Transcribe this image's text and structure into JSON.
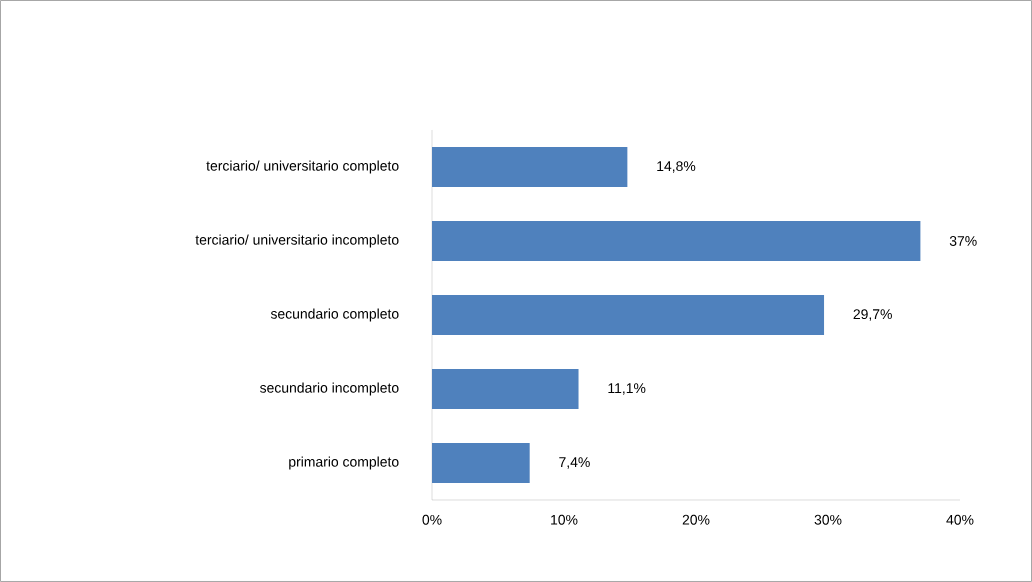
{
  "chart_data": {
    "type": "bar",
    "orientation": "horizontal",
    "categories": [
      "terciario/ universitario completo",
      "terciario/ universitario incompleto",
      "secundario completo",
      "secundario incompleto",
      "primario completo"
    ],
    "values": [
      14.8,
      37,
      29.7,
      11.1,
      7.4
    ],
    "value_labels": [
      "14,8%",
      "37%",
      "29,7%",
      "11,1%",
      "7,4%"
    ],
    "color": "#4f81bd",
    "xlim": [
      0,
      40
    ],
    "xticks": [
      {
        "value": 0,
        "label": "0%"
      },
      {
        "value": 10,
        "label": "10%"
      },
      {
        "value": 20,
        "label": "20%"
      },
      {
        "value": 30,
        "label": "30%"
      },
      {
        "value": 40,
        "label": "40%"
      }
    ],
    "grid": false
  }
}
